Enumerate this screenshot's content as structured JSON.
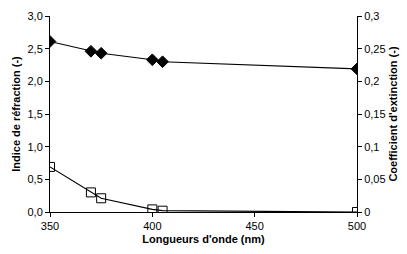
{
  "chart_data": {
    "type": "line",
    "x_label": "Longueurs d'onde (nm)",
    "y_label": "Indice de réfraction (-)",
    "y2_label": "Coefficient d'extinction (-)",
    "x": [
      350,
      370,
      375,
      400,
      405,
      500
    ],
    "series": [
      {
        "color": "#000000",
        "marker": "diamond",
        "values": [
          2.61,
          2.46,
          2.43,
          2.33,
          2.3,
          2.19
        ]
      },
      {
        "color": "#000000",
        "marker": "square-open",
        "axis": "y2",
        "values": [
          0.069,
          0.03,
          0.021,
          0.004,
          0.002,
          0.0
        ]
      }
    ],
    "xlim": [
      350,
      500
    ],
    "xticks": [
      350,
      400,
      450,
      500
    ],
    "ylim": [
      0,
      3
    ],
    "yticks": [
      {
        "value": 0,
        "label": "0,0"
      },
      {
        "value": 0.5,
        "label": "0,5"
      },
      {
        "value": 1,
        "label": "1,0"
      },
      {
        "value": 1.5,
        "label": "1,5"
      },
      {
        "value": 2,
        "label": "2,0"
      },
      {
        "value": 2.5,
        "label": "2,5"
      },
      {
        "value": 3,
        "label": "3,0"
      }
    ],
    "y2lim": [
      0,
      0.3
    ],
    "y2ticks": [
      0,
      {
        "value": 0.05,
        "label": "0,05"
      },
      {
        "value": 0.1,
        "label": "0,1"
      },
      {
        "value": 0.15,
        "label": "0,15"
      },
      {
        "value": 0.2,
        "label": "0,2"
      },
      {
        "value": 0.25,
        "label": "0,25"
      },
      {
        "value": 0.3,
        "label": "0,3"
      }
    ],
    "grid": false
  }
}
